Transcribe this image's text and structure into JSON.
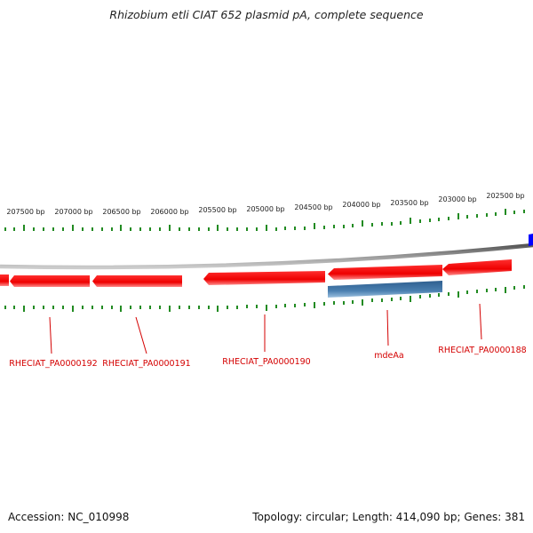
{
  "title": "Rhizobium etli CIAT 652 plasmid pA, complete sequence",
  "footer": {
    "accession": "Accession: NC_010998",
    "summary": "Topology: circular; Length: 414,090 bp; Genes: 381"
  },
  "colors": {
    "forward_gene": "#ff0000",
    "reverse_gene": "#4a7fb0",
    "edge_gene": "#0000ff",
    "backbone": "#888888",
    "ticks": "#228b22",
    "gene_label": "#d40000"
  },
  "scale_labels": [
    "207500 bp",
    "207000 bp",
    "206500 bp",
    "206000 bp",
    "205500 bp",
    "205000 bp",
    "204500 bp",
    "204000 bp",
    "203500 bp",
    "203000 bp",
    "202500 bp"
  ],
  "gene_labels": [
    "RHECIAT_PA0000192",
    "RHECIAT_PA0000191",
    "RHECIAT_PA0000190",
    "mdeAa",
    "RHECIAT_PA0000188"
  ]
}
